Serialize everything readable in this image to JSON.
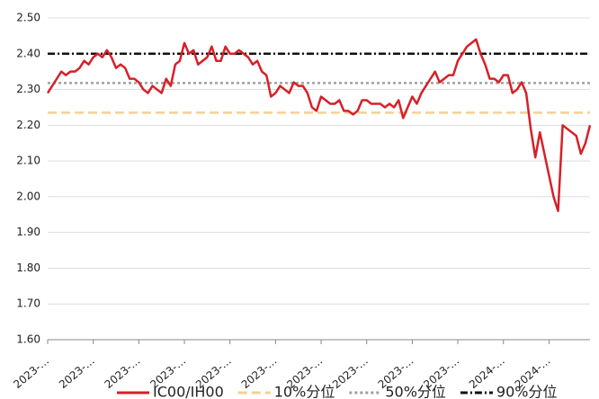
{
  "chart_data": {
    "type": "line",
    "categories": [
      "2023-…",
      null,
      null,
      null,
      null,
      null,
      null,
      null,
      null,
      null,
      "2023-…",
      null,
      null,
      null,
      null,
      null,
      null,
      null,
      null,
      null,
      "2023-…",
      null,
      null,
      null,
      null,
      null,
      null,
      null,
      null,
      null,
      "2023-…",
      null,
      null,
      null,
      null,
      null,
      null,
      null,
      null,
      null,
      "2023-…",
      null,
      null,
      null,
      null,
      null,
      null,
      null,
      null,
      null,
      "2023-…",
      null,
      null,
      null,
      null,
      null,
      null,
      null,
      null,
      null,
      "2023-…",
      null,
      null,
      null,
      null,
      null,
      null,
      null,
      null,
      null,
      "2023-…",
      null,
      null,
      null,
      null,
      null,
      null,
      null,
      null,
      null,
      "2023-…",
      null,
      null,
      null,
      null,
      null,
      null,
      null,
      null,
      null,
      "2023-…",
      null,
      null,
      null,
      null,
      null,
      null,
      null,
      null,
      null,
      "2024-…",
      null,
      null,
      null,
      null,
      null,
      null,
      null,
      null,
      null,
      "2024-…",
      null,
      null,
      null,
      null,
      null,
      null,
      null,
      null,
      null
    ],
    "series": [
      {
        "name": "IC00/IH00",
        "color": "#d62028",
        "values": [
          2.29,
          2.31,
          2.33,
          2.35,
          2.34,
          2.35,
          2.35,
          2.36,
          2.38,
          2.37,
          2.39,
          2.4,
          2.39,
          2.41,
          2.39,
          2.36,
          2.37,
          2.36,
          2.33,
          2.33,
          2.32,
          2.3,
          2.29,
          2.31,
          2.3,
          2.29,
          2.33,
          2.31,
          2.37,
          2.38,
          2.43,
          2.4,
          2.41,
          2.37,
          2.38,
          2.39,
          2.42,
          2.38,
          2.38,
          2.42,
          2.4,
          2.4,
          2.41,
          2.4,
          2.39,
          2.37,
          2.38,
          2.35,
          2.34,
          2.28,
          2.29,
          2.31,
          2.3,
          2.29,
          2.32,
          2.31,
          2.31,
          2.29,
          2.25,
          2.24,
          2.28,
          2.27,
          2.26,
          2.26,
          2.27,
          2.24,
          2.24,
          2.23,
          2.24,
          2.27,
          2.27,
          2.26,
          2.26,
          2.26,
          2.25,
          2.26,
          2.25,
          2.27,
          2.22,
          2.25,
          2.28,
          2.26,
          2.29,
          2.31,
          2.33,
          2.35,
          2.32,
          2.33,
          2.34,
          2.34,
          2.38,
          2.4,
          2.42,
          2.43,
          2.44,
          2.4,
          2.37,
          2.33,
          2.33,
          2.32,
          2.34,
          2.34,
          2.29,
          2.3,
          2.32,
          2.29,
          2.19,
          2.11,
          2.18,
          2.12,
          2.06,
          2.0,
          1.96,
          2.2,
          2.19,
          2.18,
          2.17,
          2.12,
          2.15,
          2.2
        ]
      }
    ],
    "reference_lines": [
      {
        "name": "10%分位",
        "value": 2.235,
        "color": "#f5cf95",
        "dash": "10 5"
      },
      {
        "name": "50%分位",
        "value": 2.318,
        "color": "#a0a0a0",
        "dash": "3 3"
      },
      {
        "name": "90%分位",
        "value": 2.4,
        "color": "#111111",
        "dash": "8 3 2 3"
      }
    ],
    "ylim": [
      1.6,
      2.5
    ],
    "yticks": [
      {
        "value": 1.6,
        "label": "1.60"
      },
      {
        "value": 1.7,
        "label": "1.70"
      },
      {
        "value": 1.8,
        "label": "1.80"
      },
      {
        "value": 1.9,
        "label": "1.90"
      },
      {
        "value": 2.0,
        "label": "2.00"
      },
      {
        "value": 2.1,
        "label": "2.10"
      },
      {
        "value": 2.2,
        "label": "2.20"
      },
      {
        "value": 2.3,
        "label": "2.30"
      },
      {
        "value": 2.4,
        "label": "2.40"
      },
      {
        "value": 2.5,
        "label": "2.50"
      }
    ],
    "grid": true
  }
}
